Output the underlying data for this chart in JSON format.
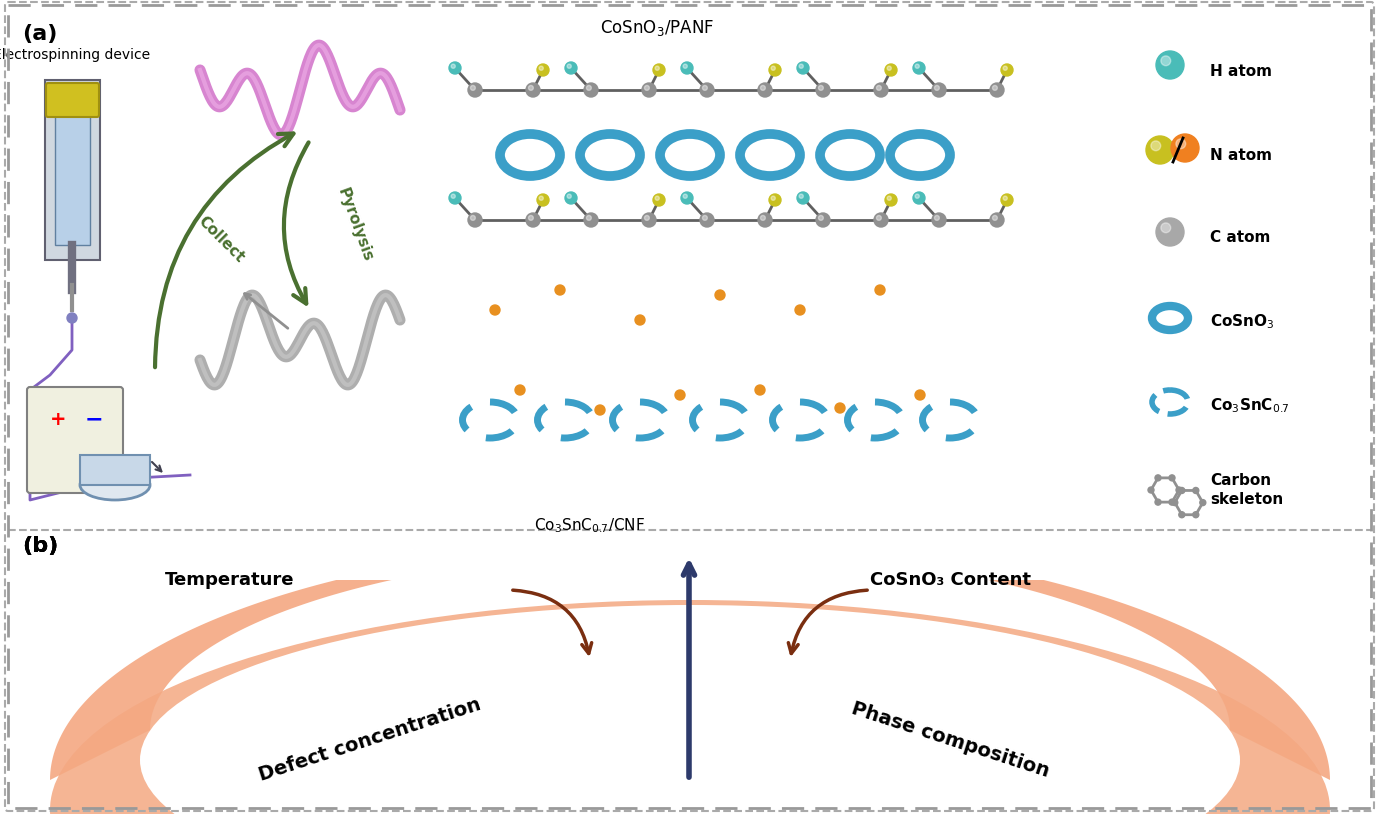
{
  "fig_width": 13.79,
  "fig_height": 8.14,
  "bg_color": "#ffffff",
  "border_color": "#aaaaaa",
  "panel_a_label": "(a)",
  "panel_b_label": "(b)",
  "cosno3_panf_label": "CoSnO₃/PANF",
  "co3snc_cnf_label": "Co₃SnC₀.₇/CNF",
  "electrospinning_label": "Electrospinning device",
  "collect_label": "Collect",
  "pyrolysis_label": "Pyrolysis",
  "legend_bg_color": "#c8dff0",
  "yellow_panel_color": "#f5e9b0",
  "blue_panel_color": "#d0dce8",
  "salmon_color": "#f4a882",
  "arrow_up_color": "#2d3a6b",
  "arrow_curve_color": "#7a2e10",
  "temp_label": "Temperature",
  "cosno3_content_label": "CoSnO₃ Content",
  "defect_label": "Defect concentration",
  "phase_label": "Phase composition",
  "h_atom_color": "#4abcb8",
  "n_atom_color1": "#c8c020",
  "n_atom_color2": "#f08020",
  "c_atom_color": "#a8a8a8",
  "cosno3_ring_color": "#3b9fc8",
  "co3snc_ring_color": "#3b9fc8",
  "purple_fiber_color": "#d070c8",
  "gray_fiber_color": "#a0a0a0",
  "green_arrow_color": "#4a7030"
}
